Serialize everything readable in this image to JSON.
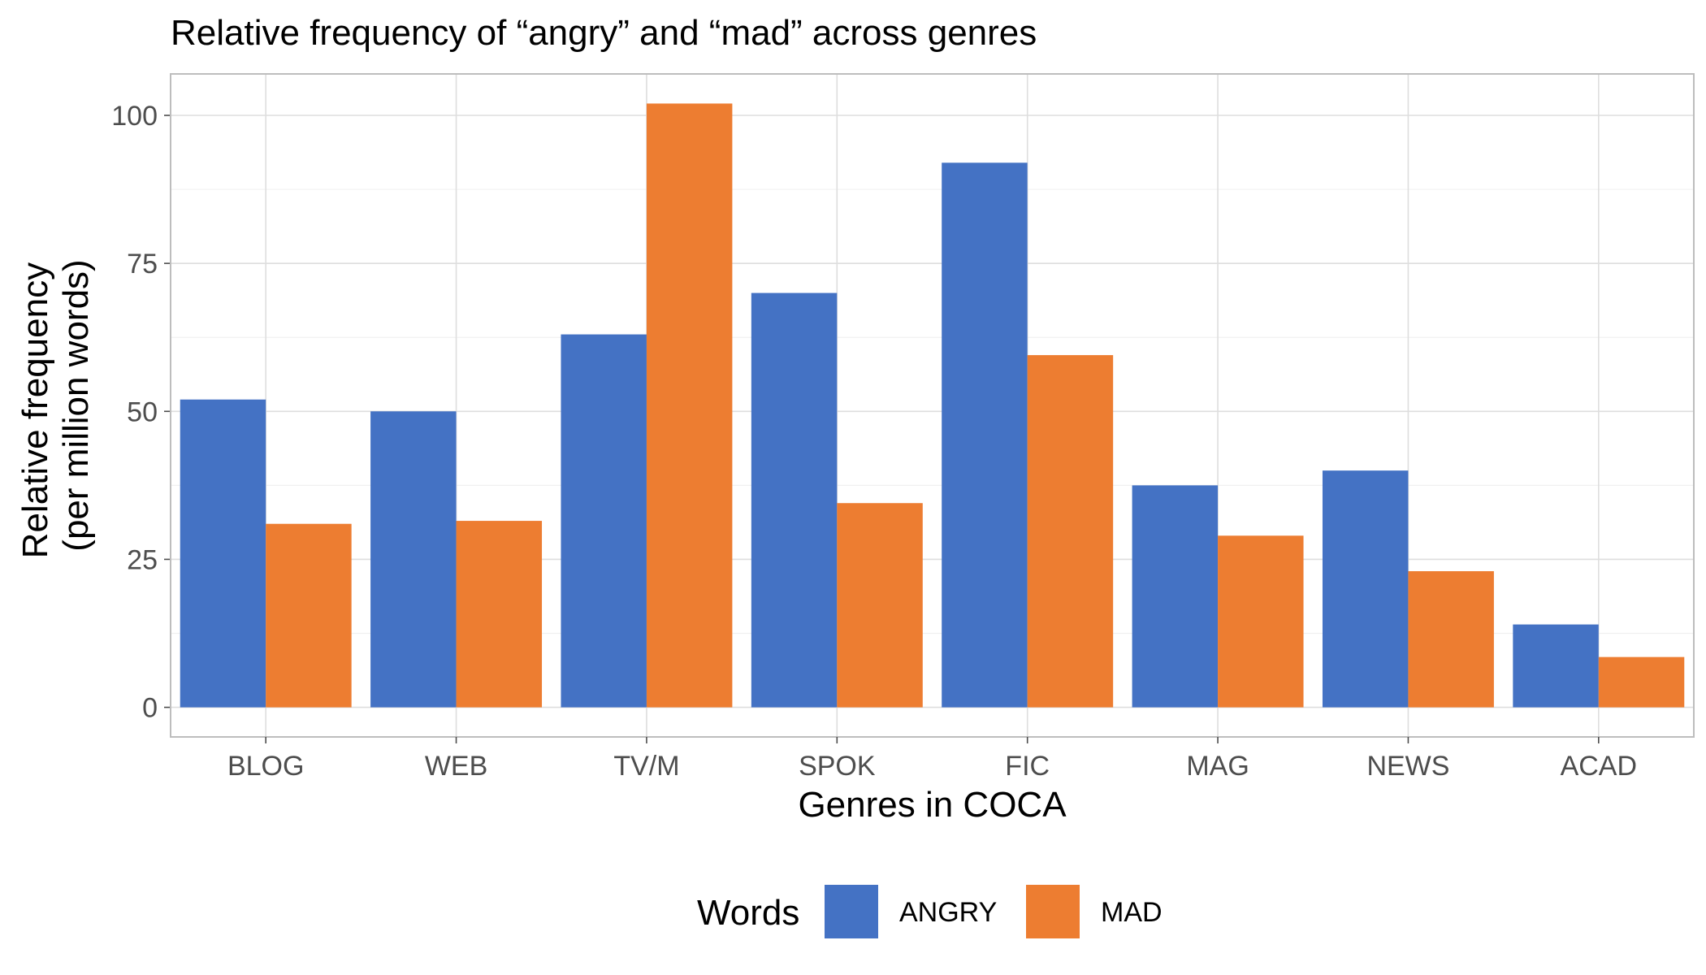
{
  "chart_data": {
    "type": "bar",
    "title": "Relative frequency of “angry” and “mad” across genres",
    "xlabel": "Genres in COCA",
    "ylabel": [
      "Relative frequency",
      "(per million words)"
    ],
    "categories": [
      "BLOG",
      "WEB",
      "TV/M",
      "SPOK",
      "FIC",
      "MAG",
      "NEWS",
      "ACAD"
    ],
    "series": [
      {
        "name": "ANGRY",
        "color": "#4472C4",
        "values": [
          52,
          50,
          63,
          70,
          92,
          37.5,
          40,
          14
        ]
      },
      {
        "name": "MAD",
        "color": "#ED7D31",
        "values": [
          31,
          31.5,
          102,
          34.5,
          59.5,
          29,
          23,
          8.5
        ]
      }
    ],
    "ylim": [
      -5,
      107
    ],
    "yticks": [
      0,
      25,
      50,
      75,
      100
    ],
    "legend": {
      "title": "Words",
      "placement": "bottom"
    },
    "grid": true
  }
}
